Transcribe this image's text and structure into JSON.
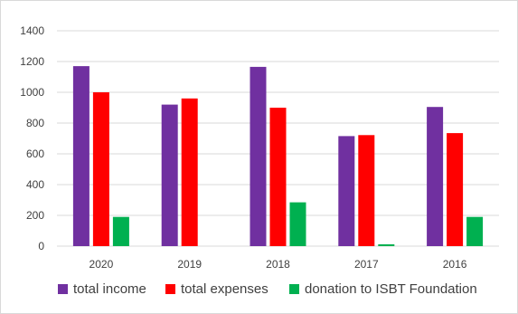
{
  "chart_data": {
    "type": "bar",
    "categories": [
      "2020",
      "2019",
      "2018",
      "2017",
      "2016"
    ],
    "series": [
      {
        "name": "total income",
        "color": "#7030a0",
        "values": [
          1170,
          920,
          1165,
          715,
          905
        ]
      },
      {
        "name": "total expenses",
        "color": "#ff0000",
        "values": [
          1000,
          960,
          900,
          722,
          735
        ]
      },
      {
        "name": "donation to ISBT Foundation",
        "color": "#00b050",
        "values": [
          190,
          0,
          285,
          12,
          190
        ]
      }
    ],
    "title": "",
    "xlabel": "",
    "ylabel": "",
    "ylim": [
      0,
      1400
    ],
    "yticks": [
      0,
      200,
      400,
      600,
      800,
      1000,
      1200,
      1400
    ],
    "grid": true,
    "legend_position": "bottom"
  }
}
